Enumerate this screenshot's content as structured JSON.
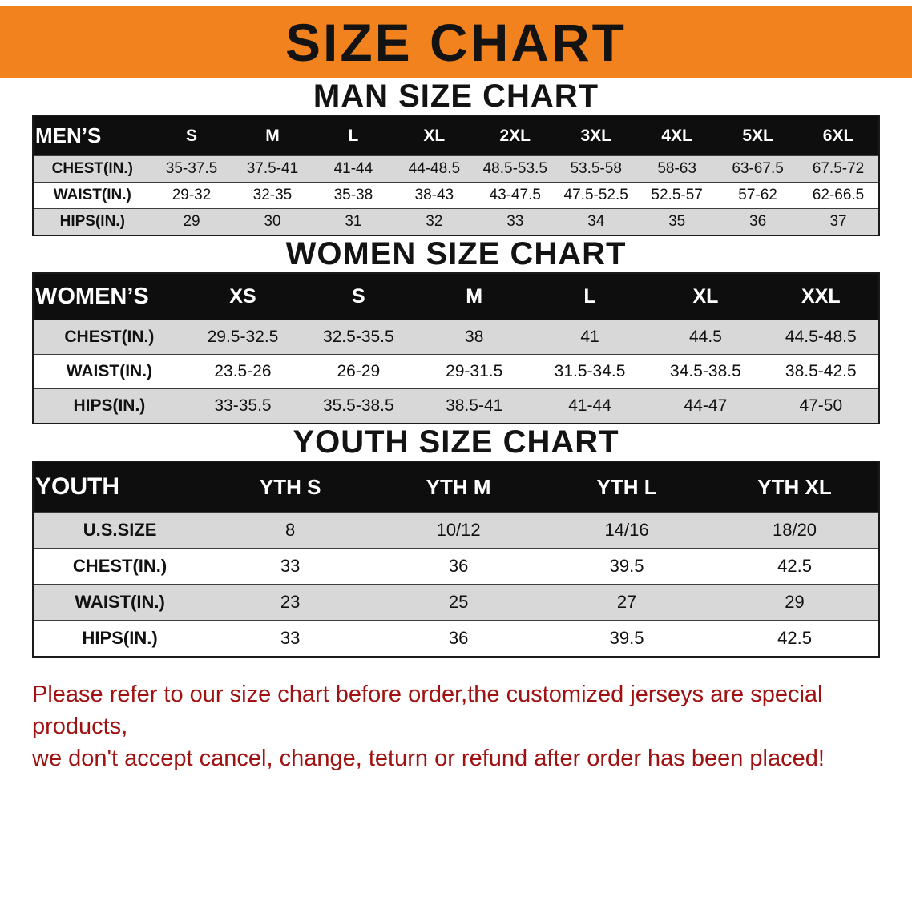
{
  "banner": {
    "title": "SIZE CHART"
  },
  "colors": {
    "banner_bg": "#f2821d",
    "header_bg": "#0e0e0e",
    "row_gray": "#d8d8d8",
    "footer_text": "#a01212"
  },
  "sections": [
    {
      "title": "MAN SIZE CHART",
      "header_label": "MEN’S",
      "columns": [
        "S",
        "M",
        "L",
        "XL",
        "2XL",
        "3XL",
        "4XL",
        "5XL",
        "6XL"
      ],
      "rows": [
        {
          "label": "CHEST(IN.)",
          "values": [
            "35-37.5",
            "37.5-41",
            "41-44",
            "44-48.5",
            "48.5-53.5",
            "53.5-58",
            "58-63",
            "63-67.5",
            "67.5-72"
          ]
        },
        {
          "label": "WAIST(IN.)",
          "values": [
            "29-32",
            "32-35",
            "35-38",
            "38-43",
            "43-47.5",
            "47.5-52.5",
            "52.5-57",
            "57-62",
            "62-66.5"
          ]
        },
        {
          "label": "HIPS(IN.)",
          "values": [
            "29",
            "30",
            "31",
            "32",
            "33",
            "34",
            "35",
            "36",
            "37"
          ]
        }
      ]
    },
    {
      "title": "WOMEN SIZE CHART",
      "header_label": "WOMEN’S",
      "columns": [
        "XS",
        "S",
        "M",
        "L",
        "XL",
        "XXL"
      ],
      "rows": [
        {
          "label": "CHEST(IN.)",
          "values": [
            "29.5-32.5",
            "32.5-35.5",
            "38",
            "41",
            "44.5",
            "44.5-48.5"
          ]
        },
        {
          "label": "WAIST(IN.)",
          "values": [
            "23.5-26",
            "26-29",
            "29-31.5",
            "31.5-34.5",
            "34.5-38.5",
            "38.5-42.5"
          ]
        },
        {
          "label": "HIPS(IN.)",
          "values": [
            "33-35.5",
            "35.5-38.5",
            "38.5-41",
            "41-44",
            "44-47",
            "47-50"
          ]
        }
      ]
    },
    {
      "title": "YOUTH SIZE CHART",
      "header_label": "YOUTH",
      "columns": [
        "YTH S",
        "YTH M",
        "YTH L",
        "YTH XL"
      ],
      "rows": [
        {
          "label": "U.S.SIZE",
          "values": [
            "8",
            "10/12",
            "14/16",
            "18/20"
          ]
        },
        {
          "label": "CHEST(IN.)",
          "values": [
            "33",
            "36",
            "39.5",
            "42.5"
          ]
        },
        {
          "label": "WAIST(IN.)",
          "values": [
            "23",
            "25",
            "27",
            "29"
          ]
        },
        {
          "label": "HIPS(IN.)",
          "values": [
            "33",
            "36",
            "39.5",
            "42.5"
          ]
        }
      ]
    }
  ],
  "footer": {
    "line1": "Please refer to our size chart before order,the customized jerseys are special products,",
    "line2": "we don't accept cancel, change, teturn or refund after order has been placed!"
  }
}
